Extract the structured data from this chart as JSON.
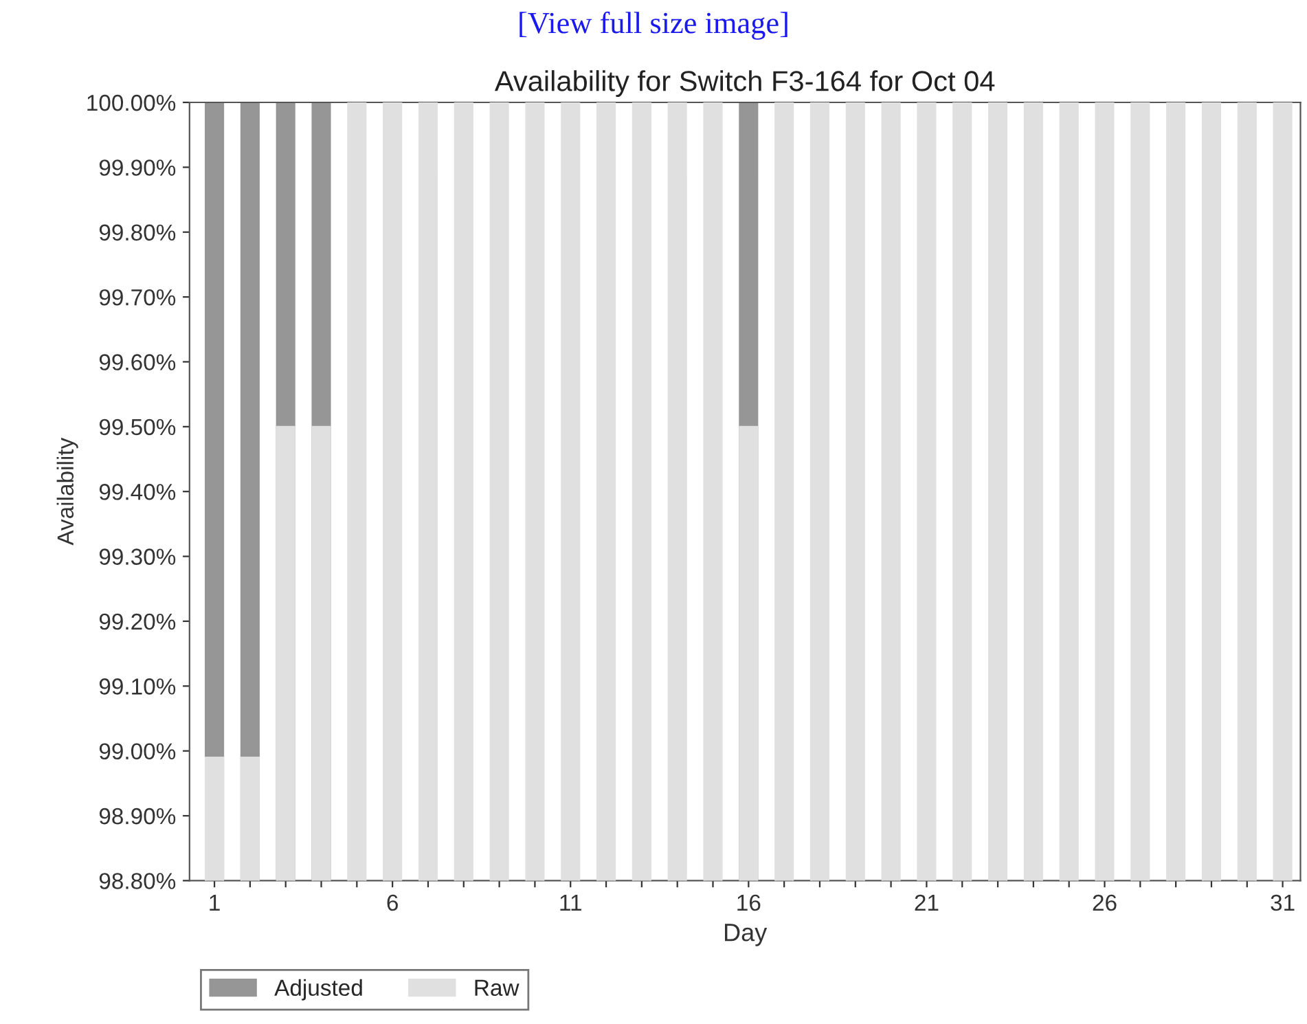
{
  "chart_data": {
    "type": "bar",
    "title": "Availability for Switch F3-164 for Oct 04",
    "xlabel": "Day",
    "ylabel": "Availability",
    "annotations": [
      "[View full size image]"
    ],
    "categories": [
      "1",
      null,
      null,
      null,
      null,
      "6",
      null,
      null,
      null,
      null,
      "11",
      null,
      null,
      null,
      null,
      "16",
      null,
      null,
      null,
      null,
      "21",
      null,
      null,
      null,
      null,
      "26",
      null,
      null,
      null,
      null,
      "31"
    ],
    "series": [
      {
        "name": "Raw",
        "color": "#e0e0e0",
        "values": [
          98.99,
          98.99,
          99.5,
          99.5,
          100,
          100,
          100,
          100,
          100,
          100,
          100,
          100,
          100,
          100,
          100,
          99.5,
          100,
          100,
          100,
          100,
          100,
          100,
          100,
          100,
          100,
          100,
          100,
          100,
          100,
          100,
          100
        ]
      },
      {
        "name": "Adjusted",
        "color": "#969696",
        "values": [
          100,
          100,
          100,
          100,
          null,
          null,
          null,
          null,
          null,
          null,
          null,
          null,
          null,
          null,
          null,
          100,
          null,
          null,
          null,
          null,
          null,
          null,
          null,
          null,
          null,
          null,
          null,
          null,
          null,
          null,
          null
        ]
      }
    ],
    "ylim": [
      98.8,
      100
    ],
    "yticks": [
      {
        "value": 98.8,
        "label": "98.80%"
      },
      {
        "value": 98.9,
        "label": "98.90%"
      },
      {
        "value": 99.0,
        "label": "99.00%"
      },
      {
        "value": 99.1,
        "label": "99.10%"
      },
      {
        "value": 99.2,
        "label": "99.20%"
      },
      {
        "value": 99.3,
        "label": "99.30%"
      },
      {
        "value": 99.4,
        "label": "99.40%"
      },
      {
        "value": 99.5,
        "label": "99.50%"
      },
      {
        "value": 99.6,
        "label": "99.60%"
      },
      {
        "value": 99.7,
        "label": "99.70%"
      },
      {
        "value": 99.8,
        "label": "99.80%"
      },
      {
        "value": 99.9,
        "label": "99.90%"
      },
      {
        "value": 100,
        "label": "100.00%"
      }
    ],
    "legend": "bottom left",
    "grid": false
  }
}
